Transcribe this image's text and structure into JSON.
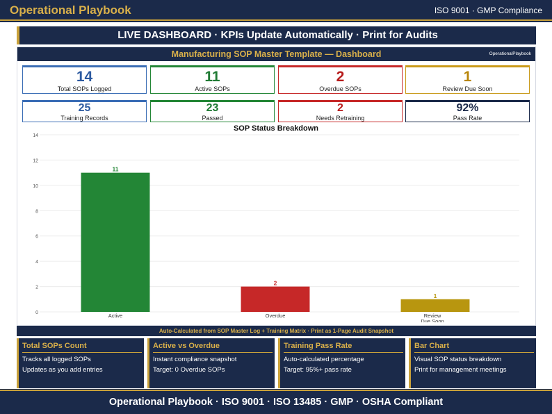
{
  "topbar": {
    "title": "Operational Playbook",
    "right": "ISO 9001 · GMP Compliance"
  },
  "banner": "LIVE DASHBOARD  ·  KPIs Update Automatically  ·  Print for Audits",
  "dashboard": {
    "title": "Manufacturing SOP Master Template — Dashboard",
    "brand": "OperationalPlaybook"
  },
  "kpis_row1": [
    {
      "value": "14",
      "label": "Total SOPs Logged",
      "color": "#2c5aa0"
    },
    {
      "value": "11",
      "label": "Active SOPs",
      "color": "#1f7a33"
    },
    {
      "value": "2",
      "label": "Overdue SOPs",
      "color": "#b71c1c"
    },
    {
      "value": "1",
      "label": "Review Due Soon",
      "color": "#b8860b"
    }
  ],
  "kpis_row2": [
    {
      "value": "25",
      "label": "Training Records",
      "color": "#2c5aa0"
    },
    {
      "value": "23",
      "label": "Passed",
      "color": "#1f7a33"
    },
    {
      "value": "2",
      "label": "Needs Retraining",
      "color": "#b71c1c"
    },
    {
      "value": "92%",
      "label": "Pass Rate",
      "color": "#1b2a4a"
    }
  ],
  "chart_data": {
    "type": "bar",
    "title": "SOP Status Breakdown",
    "categories": [
      "Active",
      "Overdue",
      "Review Due Soon"
    ],
    "values": [
      11,
      2,
      1
    ],
    "colors": [
      "#238636",
      "#c62828",
      "#b8960f"
    ],
    "ylim": [
      0,
      14
    ],
    "yticks": [
      0,
      2,
      4,
      6,
      8,
      10,
      12,
      14
    ],
    "grid": true
  },
  "footnote": "Auto-Calculated from SOP Master Log + Training Matrix  ·  Print as 1-Page Audit Snapshot",
  "cards": [
    {
      "title": "Total SOPs Count",
      "line1": "Tracks all logged SOPs",
      "line2": "Updates as you add entries"
    },
    {
      "title": "Active vs Overdue",
      "line1": "Instant compliance snapshot",
      "line2": "Target: 0 Overdue SOPs"
    },
    {
      "title": "Training Pass Rate",
      "line1": "Auto-calculated percentage",
      "line2": "Target: 95%+ pass rate"
    },
    {
      "title": "Bar Chart",
      "line1": "Visual SOP status breakdown",
      "line2": "Print for management meetings"
    }
  ],
  "bottombar": "Operational Playbook  ·  ISO 9001  ·  ISO 13485  ·  GMP  ·  OSHA Compliant"
}
